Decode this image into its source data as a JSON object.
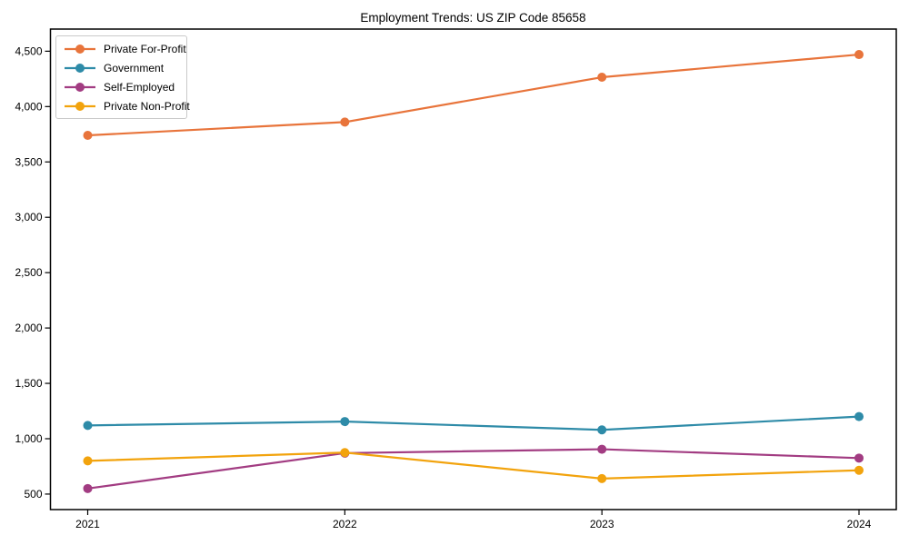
{
  "chart_data": {
    "type": "line",
    "title": "Employment Trends: US ZIP Code 85658",
    "x": [
      2021,
      2022,
      2023,
      2024
    ],
    "x_tick_labels": [
      "2021",
      "2022",
      "2023",
      "2024"
    ],
    "series": [
      {
        "name": "Private For-Profit",
        "color": "#E8743B",
        "values": [
          3740,
          3860,
          4265,
          4470
        ]
      },
      {
        "name": "Government",
        "color": "#2E8BA8",
        "values": [
          1120,
          1155,
          1080,
          1200
        ]
      },
      {
        "name": "Self-Employed",
        "color": "#A23C82",
        "values": [
          550,
          870,
          905,
          825
        ]
      },
      {
        "name": "Private Non-Profit",
        "color": "#F2A30D",
        "values": [
          800,
          875,
          640,
          715
        ]
      }
    ],
    "yticks": [
      500,
      1000,
      1500,
      2000,
      2500,
      3000,
      3500,
      4000,
      4500
    ],
    "ytick_labels": [
      "500",
      "1,000",
      "1,500",
      "2,000",
      "2,500",
      "3,000",
      "3,500",
      "4,000",
      "4,500"
    ],
    "ylim": [
      360,
      4700
    ],
    "grid": false,
    "marker": "circle",
    "legend_position": "upper-left",
    "axis_color": "#000000"
  }
}
